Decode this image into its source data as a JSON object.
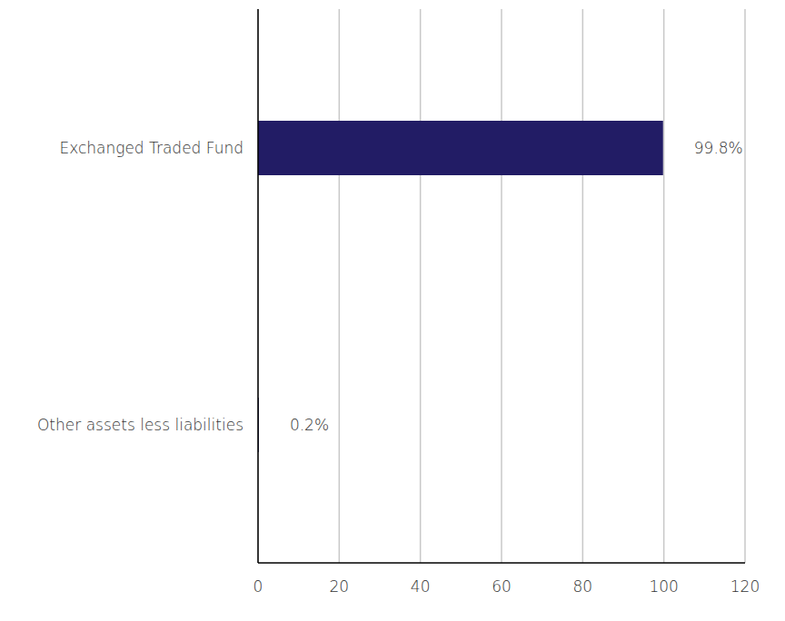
{
  "chart_data": {
    "type": "bar",
    "orientation": "horizontal",
    "categories": [
      "Exchanged Traded Fund",
      "Other assets less liabilities"
    ],
    "values": [
      99.8,
      0.2
    ],
    "value_labels": [
      "99.8%",
      "0.2%"
    ],
    "data_labels": true,
    "color": "#221c65",
    "xlim": [
      0,
      120
    ],
    "xticks": [
      0,
      20,
      40,
      60,
      80,
      100,
      120
    ],
    "grid": true
  }
}
